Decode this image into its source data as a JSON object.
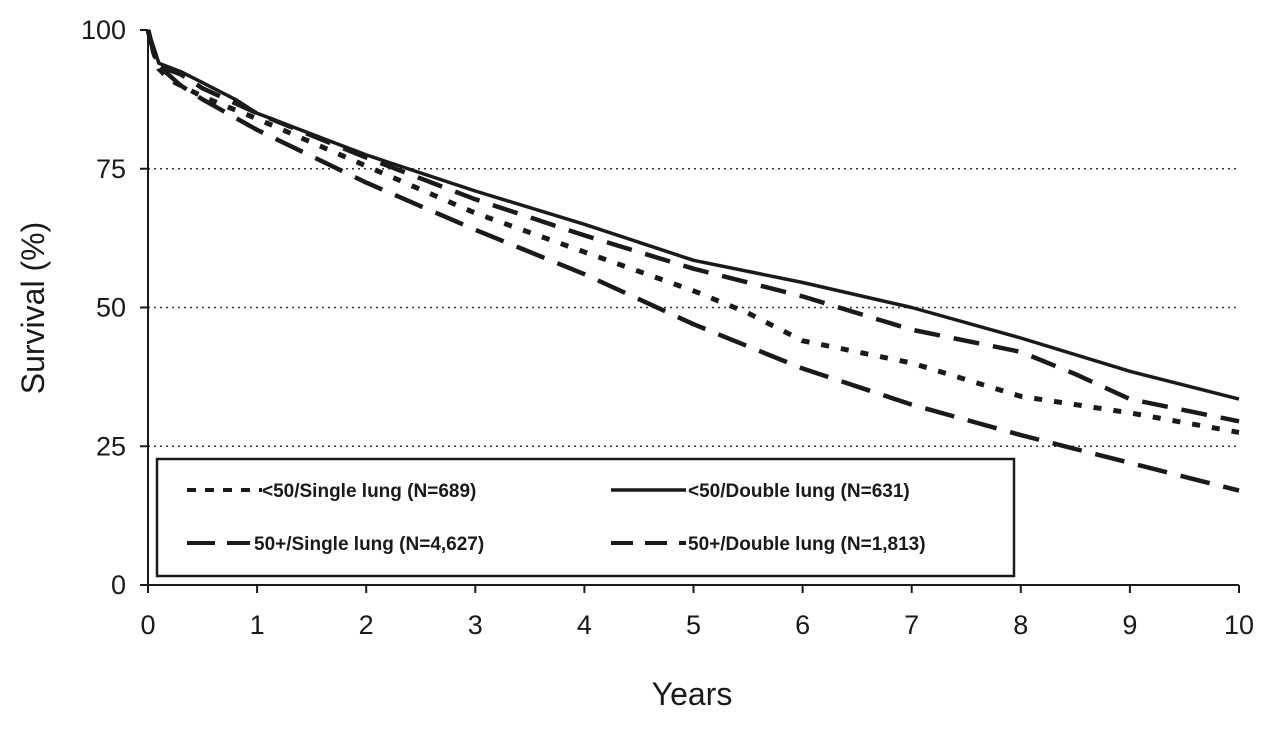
{
  "chart_data": {
    "type": "line",
    "xlabel": "Years",
    "ylabel": "Survival (%)",
    "xlim": [
      0,
      10
    ],
    "ylim": [
      0,
      100
    ],
    "x_ticks": [
      "0",
      "1",
      "2",
      "3",
      "4",
      "5",
      "6",
      "7",
      "8",
      "9",
      "10"
    ],
    "y_ticks": [
      "0",
      "25",
      "50",
      "75",
      "100"
    ],
    "grid": "horizontal dotted at 25, 50, 75",
    "legend_position": "bottom-left inside plot",
    "series": [
      {
        "name": "<50/Single lung (N=689)",
        "style": "short-dash",
        "x": [
          0,
          0.05,
          0.1,
          0.2,
          0.5,
          1,
          2,
          3,
          4,
          5,
          5.5,
          6,
          7,
          8,
          9,
          10
        ],
        "y": [
          100,
          96,
          93,
          91,
          88,
          84,
          75.5,
          67,
          60,
          53,
          49,
          44,
          40,
          34,
          31,
          27.5
        ]
      },
      {
        "name": "<50/Double lung (N=631)",
        "style": "solid",
        "x": [
          0,
          0.05,
          0.1,
          0.3,
          0.5,
          0.8,
          1,
          2,
          3,
          4,
          5,
          6,
          7,
          8,
          9,
          10
        ],
        "y": [
          100,
          97,
          94,
          92.5,
          90.5,
          87.5,
          85,
          77.5,
          71,
          65,
          58.5,
          54.5,
          50,
          44.5,
          38.5,
          33.5
        ]
      },
      {
        "name": "50+/Single lung (N=4,627)",
        "style": "long-dash",
        "x": [
          0,
          0.05,
          0.1,
          0.3,
          0.5,
          1,
          2,
          3,
          4,
          5,
          6,
          7,
          8,
          9,
          10
        ],
        "y": [
          100,
          96,
          93.5,
          90,
          87.5,
          82,
          72.5,
          64,
          56,
          47,
          39,
          32.5,
          27,
          22,
          17
        ]
      },
      {
        "name": "50+/Double lung (N=1,813)",
        "style": "long-dash",
        "x": [
          0,
          0.05,
          0.1,
          0.3,
          0.5,
          1,
          2,
          3,
          4,
          5,
          6,
          7,
          8,
          8.5,
          9,
          10
        ],
        "y": [
          100,
          96,
          93.5,
          92,
          89.5,
          85,
          77,
          69.5,
          63,
          57,
          52,
          46,
          42,
          38,
          33.5,
          29.5
        ]
      }
    ]
  }
}
